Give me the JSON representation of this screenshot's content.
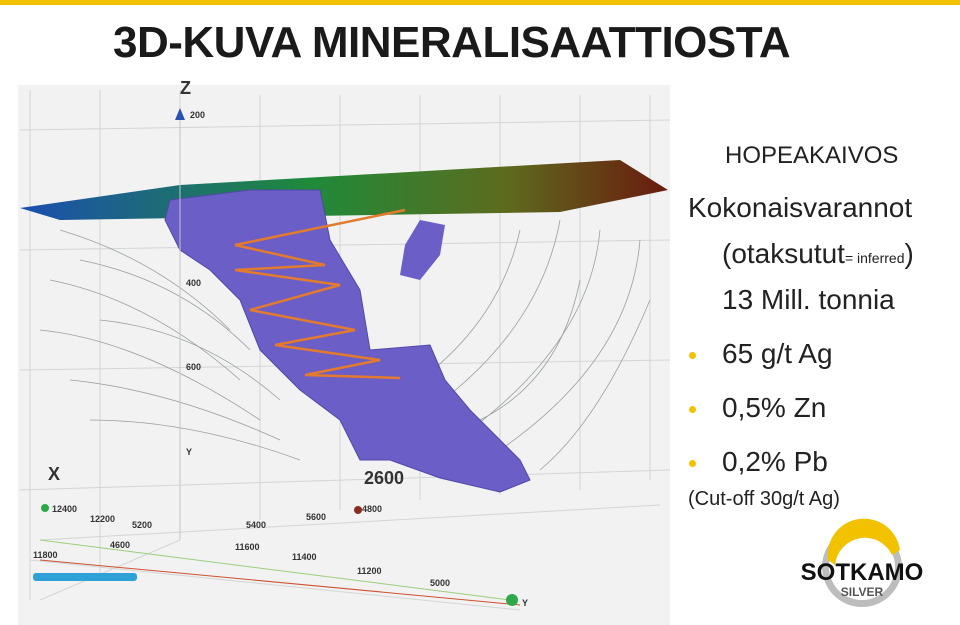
{
  "header": {
    "title": "3D-KUVA MINERALISAATTIOSTA"
  },
  "figure": {
    "labels": [
      "Z",
      "200",
      "400",
      "600",
      "Y",
      "X",
      "2600",
      "12400",
      "12200",
      "5200",
      "5400",
      "5600",
      "4800",
      "4600",
      "11800",
      "11600",
      "11400",
      "11200",
      "5000",
      "Y"
    ]
  },
  "panel": {
    "heading": "HOPEAKAIVOS",
    "subheading": "Kokonaisvarannot",
    "estimate_open": "(otaksutut",
    "estimate_note": "= inferred",
    "estimate_close": ")",
    "tonnage": "13 Mill. tonnia",
    "bullets": [
      "65 g/t Ag",
      "0,5% Zn",
      "0,2% Pb"
    ],
    "note": "(Cut-off 30g/t Ag)"
  },
  "logo": {
    "name": "SOTKAMO",
    "sub": "SILVER"
  }
}
